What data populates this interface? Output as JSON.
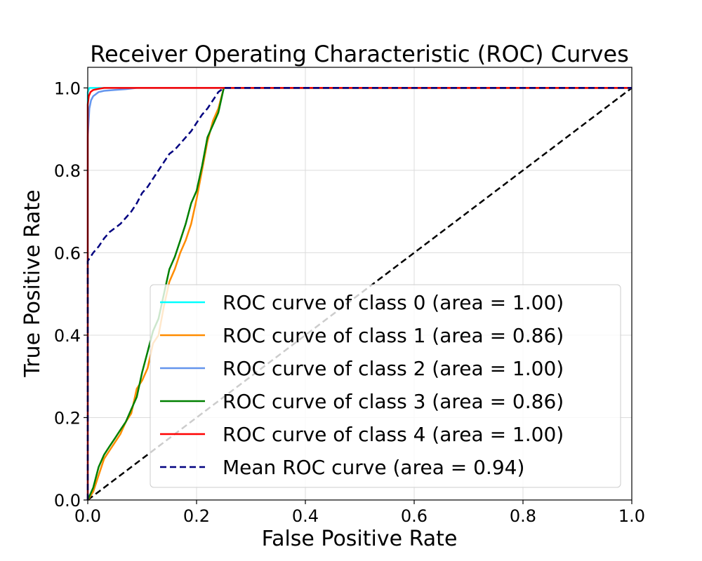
{
  "chart_data": {
    "type": "line",
    "title": "Receiver Operating Characteristic (ROC) Curves",
    "xlabel": "False Positive Rate",
    "ylabel": "True Positive Rate",
    "xlim": [
      0.0,
      1.0
    ],
    "ylim": [
      0.0,
      1.05
    ],
    "xticks": [
      0.0,
      0.2,
      0.4,
      0.6,
      0.8,
      1.0
    ],
    "yticks": [
      0.0,
      0.2,
      0.4,
      0.6,
      0.8,
      1.0
    ],
    "xtick_labels": [
      "0.0",
      "0.2",
      "0.4",
      "0.6",
      "0.8",
      "1.0"
    ],
    "ytick_labels": [
      "0.0",
      "0.2",
      "0.4",
      "0.6",
      "0.8",
      "1.0"
    ],
    "grid": true,
    "legend_position": "lower-right",
    "series": [
      {
        "name": "ROC curve of class 0 (area = 1.00)",
        "color": "#00ffff",
        "dash": "solid",
        "x": [
          0.0,
          0.0,
          0.003,
          0.02,
          1.0
        ],
        "y": [
          0.0,
          0.99,
          1.0,
          1.0,
          1.0
        ]
      },
      {
        "name": "ROC curve of class 1 (area = 0.86)",
        "color": "#ff8c00",
        "dash": "solid",
        "x": [
          0.0,
          0.01,
          0.02,
          0.03,
          0.04,
          0.05,
          0.06,
          0.07,
          0.08,
          0.09,
          0.1,
          0.11,
          0.12,
          0.13,
          0.14,
          0.15,
          0.16,
          0.17,
          0.18,
          0.19,
          0.2,
          0.21,
          0.22,
          0.23,
          0.24,
          0.25,
          1.0
        ],
        "y": [
          0.0,
          0.02,
          0.06,
          0.1,
          0.12,
          0.14,
          0.16,
          0.19,
          0.21,
          0.27,
          0.29,
          0.32,
          0.38,
          0.4,
          0.47,
          0.53,
          0.56,
          0.6,
          0.63,
          0.67,
          0.73,
          0.8,
          0.87,
          0.92,
          0.95,
          1.0,
          1.0
        ]
      },
      {
        "name": "ROC curve of class 2 (area = 1.00)",
        "color": "#6495ed",
        "dash": "solid",
        "x": [
          0.0,
          0.0,
          0.003,
          0.006,
          0.01,
          0.015,
          0.02,
          0.03,
          0.05,
          0.07,
          0.09,
          1.0
        ],
        "y": [
          0.0,
          0.88,
          0.95,
          0.97,
          0.98,
          0.985,
          0.99,
          0.993,
          0.995,
          0.997,
          1.0,
          1.0
        ]
      },
      {
        "name": "ROC curve of class 3 (area = 0.86)",
        "color": "#008000",
        "dash": "solid",
        "x": [
          0.0,
          0.01,
          0.02,
          0.03,
          0.04,
          0.05,
          0.06,
          0.07,
          0.08,
          0.09,
          0.1,
          0.11,
          0.12,
          0.13,
          0.14,
          0.15,
          0.16,
          0.17,
          0.18,
          0.19,
          0.2,
          0.21,
          0.22,
          0.23,
          0.24,
          0.25,
          1.0
        ],
        "y": [
          0.0,
          0.03,
          0.08,
          0.11,
          0.13,
          0.15,
          0.17,
          0.19,
          0.22,
          0.25,
          0.31,
          0.36,
          0.41,
          0.44,
          0.5,
          0.56,
          0.59,
          0.63,
          0.67,
          0.72,
          0.75,
          0.81,
          0.88,
          0.91,
          0.94,
          1.0,
          1.0
        ]
      },
      {
        "name": "ROC curve of class 4 (area = 1.00)",
        "color": "#ff0000",
        "dash": "solid",
        "x": [
          0.0,
          0.0,
          0.002,
          0.005,
          0.01,
          0.02,
          0.03,
          1.0
        ],
        "y": [
          0.0,
          0.96,
          0.98,
          0.99,
          0.995,
          0.998,
          1.0,
          1.0
        ]
      },
      {
        "name": "Mean ROC curve (area = 0.94)",
        "color": "#000080",
        "dash": "dashed",
        "x": [
          0.0,
          0.0,
          0.01,
          0.02,
          0.03,
          0.04,
          0.05,
          0.06,
          0.07,
          0.08,
          0.09,
          0.1,
          0.11,
          0.12,
          0.13,
          0.14,
          0.15,
          0.16,
          0.17,
          0.18,
          0.19,
          0.2,
          0.21,
          0.22,
          0.23,
          0.24,
          0.25,
          1.0
        ],
        "y": [
          0.0,
          0.58,
          0.6,
          0.615,
          0.635,
          0.65,
          0.66,
          0.67,
          0.685,
          0.7,
          0.72,
          0.745,
          0.76,
          0.78,
          0.8,
          0.82,
          0.84,
          0.85,
          0.865,
          0.88,
          0.895,
          0.915,
          0.935,
          0.95,
          0.97,
          0.99,
          1.0,
          1.0
        ]
      }
    ],
    "reference_line": {
      "color": "#000000",
      "dash": "dashed",
      "x": [
        0.0,
        1.0
      ],
      "y": [
        0.0,
        1.0
      ]
    }
  }
}
